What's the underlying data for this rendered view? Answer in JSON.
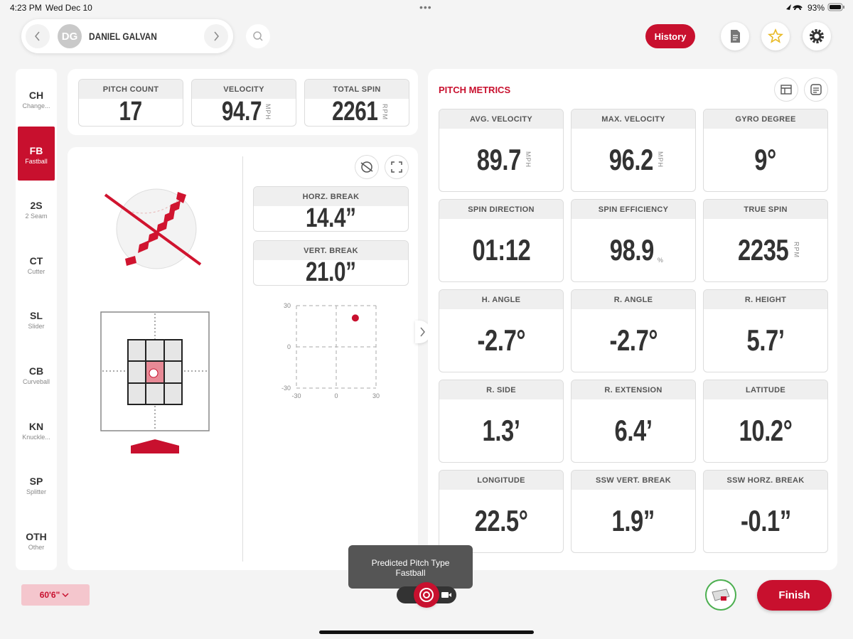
{
  "status": {
    "time": "4:23 PM",
    "date": "Wed Dec 10",
    "battery": "93%"
  },
  "header": {
    "initials": "DG",
    "player": "DANIEL GALVAN",
    "history": "History"
  },
  "pitch_types": {
    "selected": 1,
    "items": [
      {
        "code": "CH",
        "name": "Change..."
      },
      {
        "code": "FB",
        "name": "Fastball"
      },
      {
        "code": "2S",
        "name": "2 Seam"
      },
      {
        "code": "CT",
        "name": "Cutter"
      },
      {
        "code": "SL",
        "name": "Slider"
      },
      {
        "code": "CB",
        "name": "Curveball"
      },
      {
        "code": "KN",
        "name": "Knuckle..."
      },
      {
        "code": "SP",
        "name": "Splitter"
      },
      {
        "code": "OTH",
        "name": "Other"
      }
    ]
  },
  "summary": [
    {
      "label": "PITCH COUNT",
      "value": "17"
    },
    {
      "label": "VELOCITY",
      "value": "94.7",
      "unit": "MPH"
    },
    {
      "label": "TOTAL SPIN",
      "value": "2261",
      "unit": "RPM"
    }
  ],
  "breaks": [
    {
      "label": "HORZ. BREAK",
      "value": "14.4”"
    },
    {
      "label": "VERT. BREAK",
      "value": "21.0”"
    }
  ],
  "break_plot": {
    "xlim": [
      -30,
      30
    ],
    "ylim": [
      -30,
      30
    ],
    "xticks": [
      -30,
      0,
      30
    ],
    "yticks": [
      -30,
      0,
      30
    ],
    "point": {
      "x": 14.4,
      "y": 21.0
    },
    "color": "#c8102e"
  },
  "metrics": {
    "title": "PITCH METRICS",
    "items": [
      {
        "label": "AVG. VELOCITY",
        "value": "89.7",
        "unit": "MPH"
      },
      {
        "label": "MAX. VELOCITY",
        "value": "96.2",
        "unit": "MPH"
      },
      {
        "label": "GYRO DEGREE",
        "value": "9°"
      },
      {
        "label": "SPIN DIRECTION",
        "value": "01:12"
      },
      {
        "label": "SPIN EFFICIENCY",
        "value": "98.9",
        "unit": "%"
      },
      {
        "label": "TRUE SPIN",
        "value": "2235",
        "unit": "RPM"
      },
      {
        "label": "H. ANGLE",
        "value": "-2.7°"
      },
      {
        "label": "R. ANGLE",
        "value": "-2.7°"
      },
      {
        "label": "R. HEIGHT",
        "value": "5.7’"
      },
      {
        "label": "R. SIDE",
        "value": "1.3’"
      },
      {
        "label": "R. EXTENSION",
        "value": "6.4’"
      },
      {
        "label": "LATITUDE",
        "value": "10.2°"
      },
      {
        "label": "LONGITUDE",
        "value": "22.5°"
      },
      {
        "label": "SSW VERT. BREAK",
        "value": "1.9”"
      },
      {
        "label": "SSW HORZ. BREAK",
        "value": "-0.1”"
      }
    ]
  },
  "toast": {
    "title": "Predicted Pitch Type",
    "pitch": "Fastball"
  },
  "footer": {
    "distance": "60'6\"",
    "finish": "Finish"
  }
}
